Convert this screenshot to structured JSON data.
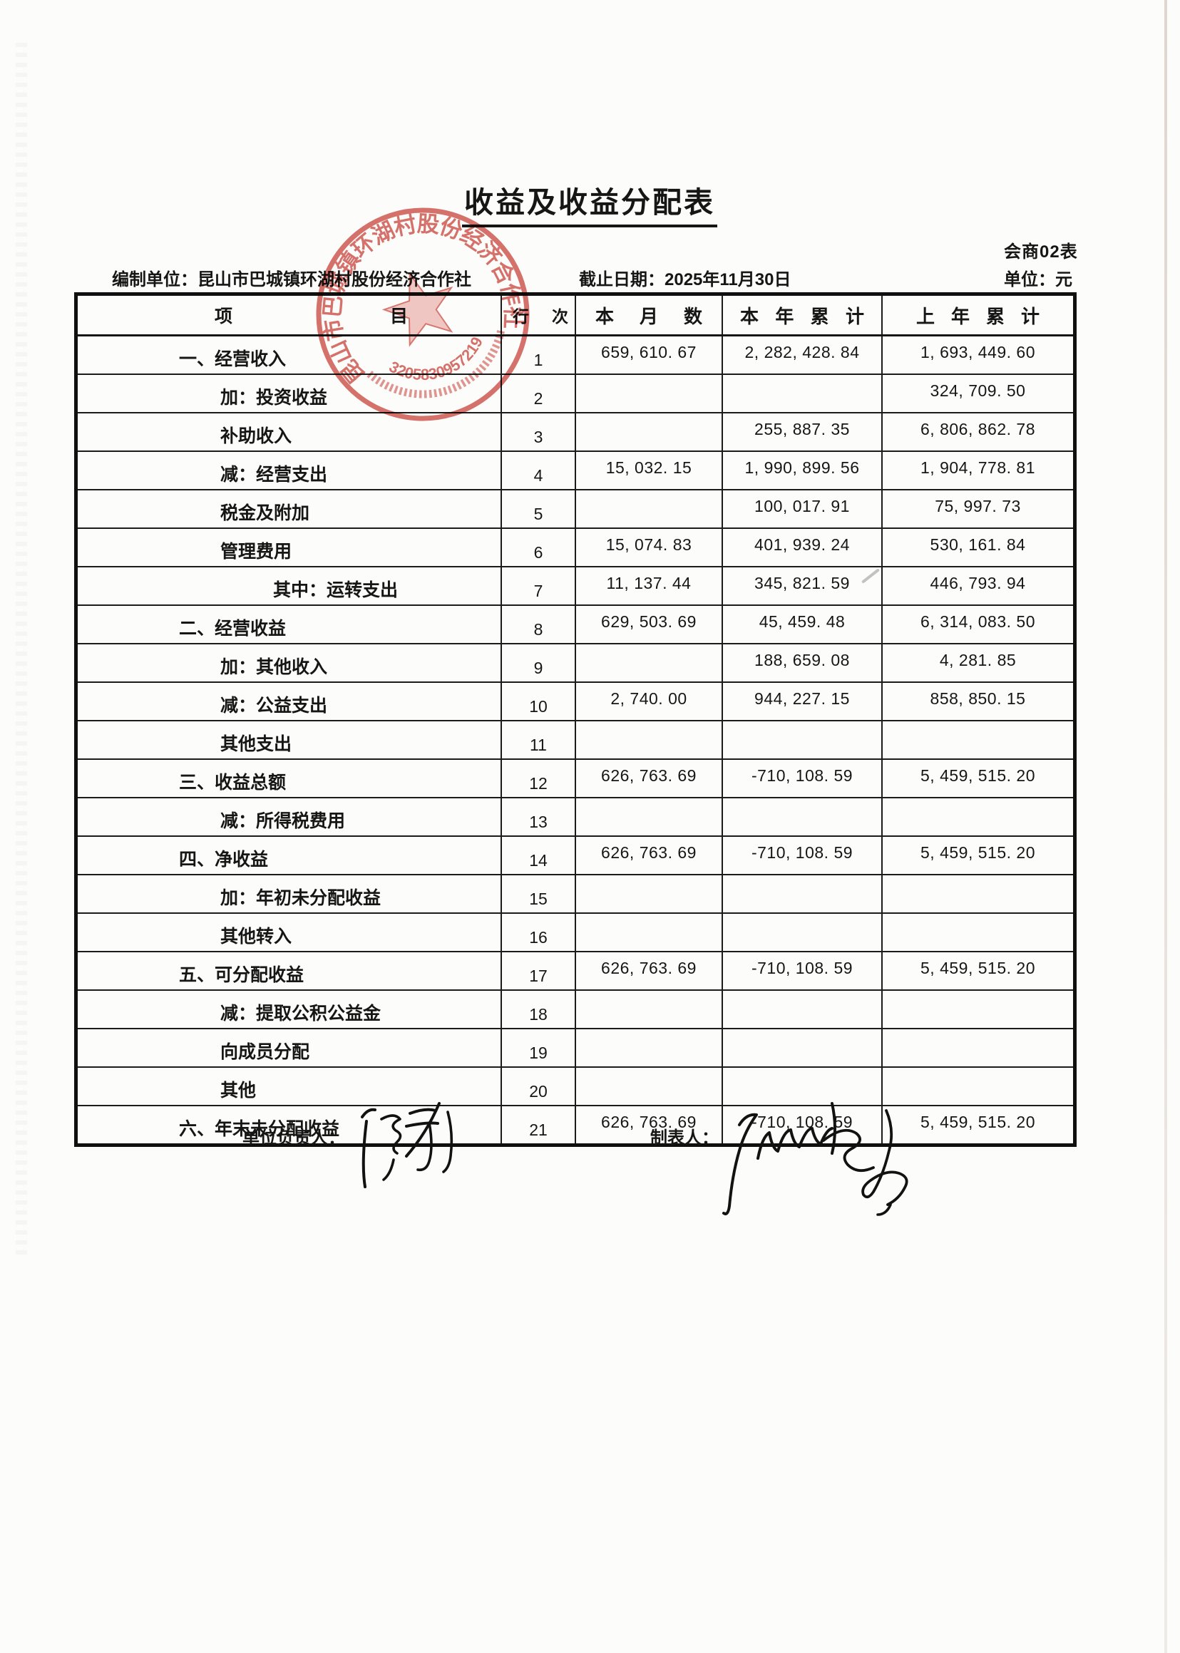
{
  "page": {
    "title": "收益及收益分配表",
    "form_code": "会商02表",
    "prepared_by_label": "编制单位：",
    "prepared_by": "昆山市巴城镇环湖村股份经济合作社",
    "cutoff_label": "截止日期：",
    "cutoff_date": "2025年11月30日",
    "unit_label": "单位：",
    "unit": "元"
  },
  "stamp": {
    "org": "昆山市巴城镇环湖村股份经济合作社",
    "code": "3205830957219",
    "color": "#cf4f48"
  },
  "table": {
    "headers": {
      "item": "项目",
      "row_no": "行次",
      "month": "本月数",
      "ytd": "本年累计",
      "prev_year": "上年累计"
    },
    "rows": [
      {
        "item": "一、经营收入",
        "indent": 1,
        "no": "1",
        "month": "659, 610. 67",
        "ytd": "2, 282, 428. 84",
        "prev": "1, 693, 449. 60"
      },
      {
        "item": "加：投资收益",
        "indent": 2,
        "no": "2",
        "month": "",
        "ytd": "",
        "prev": "324, 709. 50"
      },
      {
        "item": "补助收入",
        "indent": 2,
        "no": "3",
        "month": "",
        "ytd": "255, 887. 35",
        "prev": "6, 806, 862. 78"
      },
      {
        "item": "减：经营支出",
        "indent": 2,
        "no": "4",
        "month": "15, 032. 15",
        "ytd": "1, 990, 899. 56",
        "prev": "1, 904, 778. 81"
      },
      {
        "item": "税金及附加",
        "indent": 2,
        "no": "5",
        "month": "",
        "ytd": "100, 017. 91",
        "prev": "75, 997. 73"
      },
      {
        "item": "管理费用",
        "indent": 2,
        "no": "6",
        "month": "15, 074. 83",
        "ytd": "401, 939. 24",
        "prev": "530, 161. 84"
      },
      {
        "item": "其中：运转支出",
        "indent": 3,
        "no": "7",
        "month": "11, 137. 44",
        "ytd": "345, 821. 59",
        "prev": "446, 793. 94"
      },
      {
        "item": "二、经营收益",
        "indent": 1,
        "no": "8",
        "month": "629, 503. 69",
        "ytd": "45, 459. 48",
        "prev": "6, 314, 083. 50"
      },
      {
        "item": "加：其他收入",
        "indent": 2,
        "no": "9",
        "month": "",
        "ytd": "188, 659. 08",
        "prev": "4, 281. 85"
      },
      {
        "item": "减：公益支出",
        "indent": 2,
        "no": "10",
        "month": "2, 740. 00",
        "ytd": "944, 227. 15",
        "prev": "858, 850. 15"
      },
      {
        "item": "其他支出",
        "indent": 2,
        "no": "11",
        "month": "",
        "ytd": "",
        "prev": ""
      },
      {
        "item": "三、收益总额",
        "indent": 1,
        "no": "12",
        "month": "626, 763. 69",
        "ytd": "-710, 108. 59",
        "prev": "5, 459, 515. 20"
      },
      {
        "item": "减：所得税费用",
        "indent": 2,
        "no": "13",
        "month": "",
        "ytd": "",
        "prev": ""
      },
      {
        "item": "四、净收益",
        "indent": 1,
        "no": "14",
        "month": "626, 763. 69",
        "ytd": "-710, 108. 59",
        "prev": "5, 459, 515. 20"
      },
      {
        "item": "加：年初未分配收益",
        "indent": 2,
        "no": "15",
        "month": "",
        "ytd": "",
        "prev": ""
      },
      {
        "item": "其他转入",
        "indent": 2,
        "no": "16",
        "month": "",
        "ytd": "",
        "prev": ""
      },
      {
        "item": "五、可分配收益",
        "indent": 1,
        "no": "17",
        "month": "626, 763. 69",
        "ytd": "-710, 108. 59",
        "prev": "5, 459, 515. 20"
      },
      {
        "item": "减：提取公积公益金",
        "indent": 2,
        "no": "18",
        "month": "",
        "ytd": "",
        "prev": ""
      },
      {
        "item": "向成员分配",
        "indent": 2,
        "no": "19",
        "month": "",
        "ytd": "",
        "prev": ""
      },
      {
        "item": "其他",
        "indent": 2,
        "no": "20",
        "month": "",
        "ytd": "",
        "prev": ""
      },
      {
        "item": "六、年末未分配收益",
        "indent": 1,
        "no": "21",
        "month": "626, 763. 69",
        "ytd": "-710, 108. 59",
        "prev": "5, 459, 515. 20"
      }
    ]
  },
  "footer": {
    "responsible_label": "单位负责人：",
    "preparer_label": "制表人："
  }
}
